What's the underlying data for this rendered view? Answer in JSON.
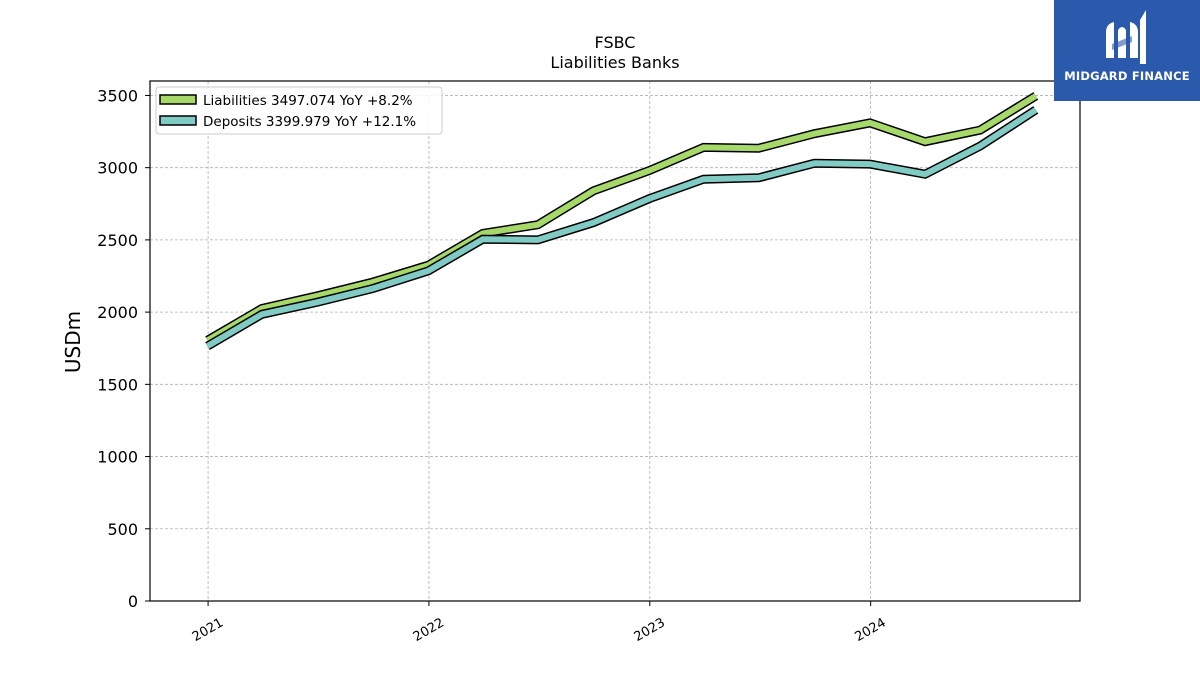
{
  "chart_data": {
    "type": "line",
    "title": "FSBC",
    "subtitle": "Liabilities Banks",
    "xlabel": "",
    "ylabel": "USDm",
    "ylim": [
      0,
      3600
    ],
    "yticks": [
      0,
      500,
      1000,
      1500,
      2000,
      2500,
      3000,
      3500
    ],
    "xticks": [
      "2021",
      "2022",
      "2023",
      "2024"
    ],
    "xlim": [
      "2020-09-27",
      "2024-12-12"
    ],
    "grid": true,
    "legend_position": "top-left",
    "x": [
      "2020-12-31",
      "2021-03-31",
      "2021-06-30",
      "2021-09-30",
      "2021-12-31",
      "2022-03-31",
      "2022-06-30",
      "2022-09-30",
      "2022-12-31",
      "2023-03-31",
      "2023-06-30",
      "2023-09-30",
      "2023-12-31",
      "2024-03-31",
      "2024-06-30",
      "2024-09-30"
    ],
    "series": [
      {
        "name": "Liabilities",
        "legend_label": "Liabilities  3497.074 YoY +8.2%",
        "color": "#a6d96a",
        "values": [
          1805,
          2025,
          2112,
          2208,
          2325,
          2545,
          2605,
          2840,
          2980,
          3140,
          3135,
          3235,
          3310,
          3180,
          3260,
          3497
        ]
      },
      {
        "name": "Deposits",
        "legend_label": "Deposits  3399.979 YoY +12.1%",
        "color": "#80cbc4",
        "values": [
          1765,
          1985,
          2068,
          2163,
          2285,
          2505,
          2500,
          2620,
          2785,
          2920,
          2930,
          3030,
          3025,
          2955,
          3150,
          3400
        ]
      }
    ]
  },
  "logo": {
    "text": "MIDGARD FINANCE",
    "background": "#2b59ab",
    "icon": "midgard-logo-icon"
  }
}
